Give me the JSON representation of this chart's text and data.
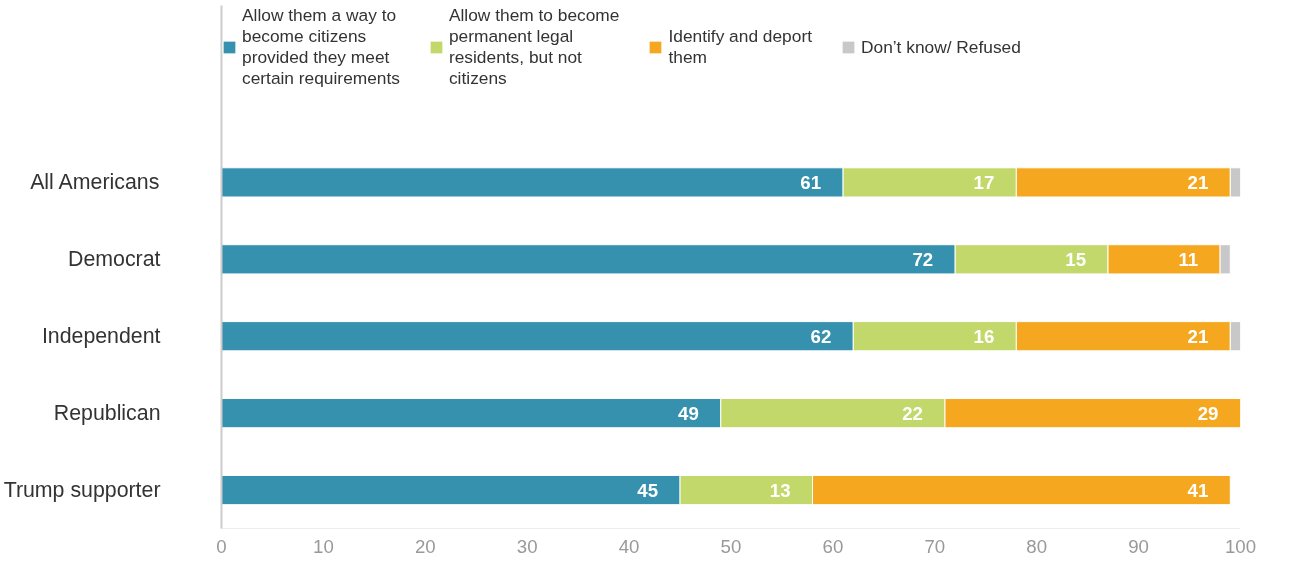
{
  "chart_data": {
    "type": "bar",
    "orientation": "horizontal",
    "stacked": true,
    "categories": [
      "All Americans",
      "Democrat",
      "Independent",
      "Republican",
      "Trump supporter"
    ],
    "series": [
      {
        "name": "Allow them a way to become citizens provided they meet certain requirements",
        "color": "#3591ae",
        "values": [
          61,
          72,
          62,
          49,
          45
        ],
        "value_labels": [
          "61",
          "72",
          "62",
          "49",
          "45"
        ]
      },
      {
        "name": "Allow them to become permanent legal residents, but not citizens",
        "color": "#c2d86a",
        "values": [
          17,
          15,
          16,
          22,
          13
        ],
        "value_labels": [
          "17",
          "15",
          "16",
          "22",
          "13"
        ]
      },
      {
        "name": "Identify and deport them",
        "color": "#f5a81f",
        "values": [
          21,
          11,
          21,
          29,
          41
        ],
        "value_labels": [
          "21",
          "11",
          "21",
          "29",
          "41"
        ]
      },
      {
        "name": "Don’t know/ Refused",
        "color": "#c8c8c8",
        "values": [
          1,
          1,
          1,
          null,
          null
        ],
        "value_labels": [
          null,
          null,
          null,
          null,
          null
        ]
      }
    ],
    "xlim": [
      0,
      100
    ],
    "xticks": [
      0,
      10,
      20,
      30,
      40,
      50,
      60,
      70,
      80,
      90,
      100
    ],
    "grid": false,
    "legend": "top"
  }
}
